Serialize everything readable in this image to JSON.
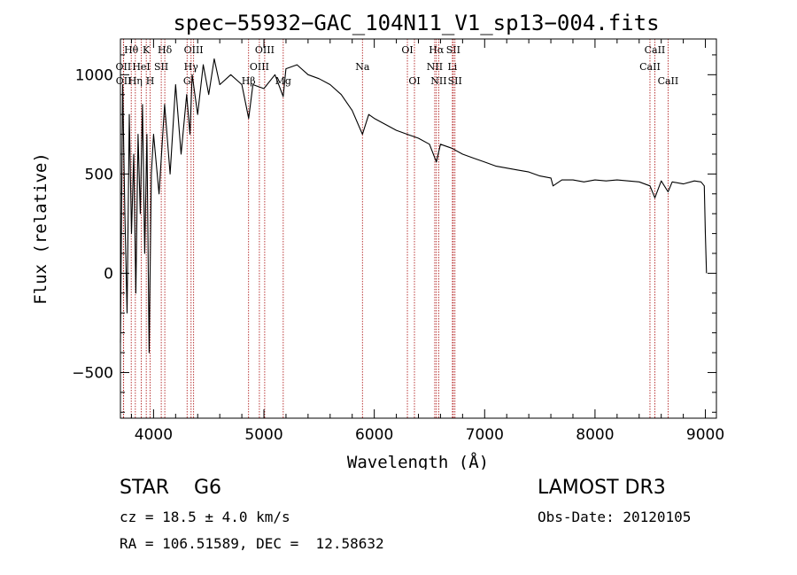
{
  "chart_data": {
    "type": "line",
    "title": "spec−55932−GAC_104N11_V1_sp13−004.fits",
    "xlabel": "Wavelength (Å)",
    "ylabel": "Flux (relative)",
    "xlim": [
      3700,
      9100
    ],
    "ylim": [
      -730,
      1180
    ],
    "xticks": [
      4000,
      5000,
      6000,
      7000,
      8000,
      9000
    ],
    "xtick_labels": [
      "4000",
      "5000",
      "6000",
      "7000",
      "8000",
      "9000"
    ],
    "yticks": [
      -500,
      0,
      500,
      1000
    ],
    "ytick_labels": [
      "−500",
      "0",
      "500",
      "1000"
    ],
    "spectrum": {
      "x": [
        3700,
        3720,
        3740,
        3760,
        3780,
        3800,
        3820,
        3840,
        3860,
        3880,
        3900,
        3920,
        3940,
        3960,
        3980,
        4000,
        4050,
        4100,
        4150,
        4200,
        4250,
        4300,
        4330,
        4350,
        4400,
        4450,
        4500,
        4550,
        4600,
        4700,
        4800,
        4862,
        4900,
        5000,
        5100,
        5175,
        5200,
        5300,
        5400,
        5500,
        5600,
        5700,
        5800,
        5893,
        5950,
        6000,
        6100,
        6200,
        6300,
        6400,
        6500,
        6563,
        6600,
        6700,
        6800,
        6900,
        7000,
        7100,
        7200,
        7300,
        7400,
        7500,
        7600,
        7620,
        7700,
        7800,
        7900,
        8000,
        8100,
        8200,
        8300,
        8400,
        8498,
        8542,
        8600,
        8662,
        8700,
        8800,
        8900,
        8960,
        8990,
        9000,
        9010
      ],
      "y": [
        -350,
        950,
        300,
        -200,
        800,
        200,
        600,
        -100,
        700,
        300,
        850,
        100,
        700,
        -400,
        500,
        700,
        400,
        850,
        500,
        950,
        600,
        900,
        700,
        1000,
        800,
        1050,
        900,
        1080,
        950,
        1000,
        950,
        780,
        950,
        930,
        1000,
        890,
        1030,
        1050,
        1000,
        980,
        950,
        900,
        820,
        700,
        800,
        780,
        750,
        720,
        700,
        680,
        650,
        560,
        650,
        630,
        600,
        580,
        560,
        540,
        530,
        520,
        510,
        490,
        480,
        440,
        470,
        470,
        460,
        470,
        465,
        470,
        465,
        460,
        440,
        380,
        465,
        410,
        460,
        450,
        465,
        460,
        440,
        200,
        0
      ]
    },
    "lines": [
      {
        "name": "Hθ",
        "wavelength": 3798,
        "row": 0
      },
      {
        "name": "K",
        "wavelength": 3934,
        "row": 0
      },
      {
        "name": "Hδ",
        "wavelength": 4102,
        "row": 0
      },
      {
        "name": "OIII",
        "wavelength": 4363,
        "row": 0
      },
      {
        "name": "OIII",
        "wavelength": 5007,
        "row": 0
      },
      {
        "name": "OI",
        "wavelength": 6300,
        "row": 0
      },
      {
        "name": "Hα",
        "wavelength": 6563,
        "row": 0
      },
      {
        "name": "SII",
        "wavelength": 6716,
        "row": 0
      },
      {
        "name": "CaII",
        "wavelength": 8542,
        "row": 0
      },
      {
        "name": "OII",
        "wavelength": 3727,
        "row": 1
      },
      {
        "name": "HeI",
        "wavelength": 3889,
        "row": 1
      },
      {
        "name": "SII",
        "wavelength": 4070,
        "row": 1
      },
      {
        "name": "Hγ",
        "wavelength": 4340,
        "row": 1
      },
      {
        "name": "OIII",
        "wavelength": 4959,
        "row": 1
      },
      {
        "name": "Na",
        "wavelength": 5893,
        "row": 1
      },
      {
        "name": "NII",
        "wavelength": 6548,
        "row": 1
      },
      {
        "name": "Li",
        "wavelength": 6708,
        "row": 1
      },
      {
        "name": "CaII",
        "wavelength": 8498,
        "row": 1
      },
      {
        "name": "OII",
        "wavelength": 3729,
        "row": 2
      },
      {
        "name": "Hη",
        "wavelength": 3835,
        "row": 2
      },
      {
        "name": "H",
        "wavelength": 3969,
        "row": 2
      },
      {
        "name": "G",
        "wavelength": 4304,
        "row": 2
      },
      {
        "name": "Hβ",
        "wavelength": 4861,
        "row": 2
      },
      {
        "name": "Mg",
        "wavelength": 5175,
        "row": 2
      },
      {
        "name": "OI",
        "wavelength": 6364,
        "row": 2
      },
      {
        "name": "NII",
        "wavelength": 6584,
        "row": 2
      },
      {
        "name": "SII",
        "wavelength": 6731,
        "row": 2
      },
      {
        "name": "CaII",
        "wavelength": 8662,
        "row": 2
      }
    ]
  },
  "info": {
    "class": "STAR    G6",
    "survey": "LAMOST DR3",
    "cz": "cz = 18.5 ± 4.0 km/s",
    "obs_date": "Obs-Date: 20120105",
    "radec": "RA = 106.51589, DEC =  12.58632"
  },
  "colors": {
    "spectrum": "#000000",
    "line_marker": "#b22222"
  }
}
